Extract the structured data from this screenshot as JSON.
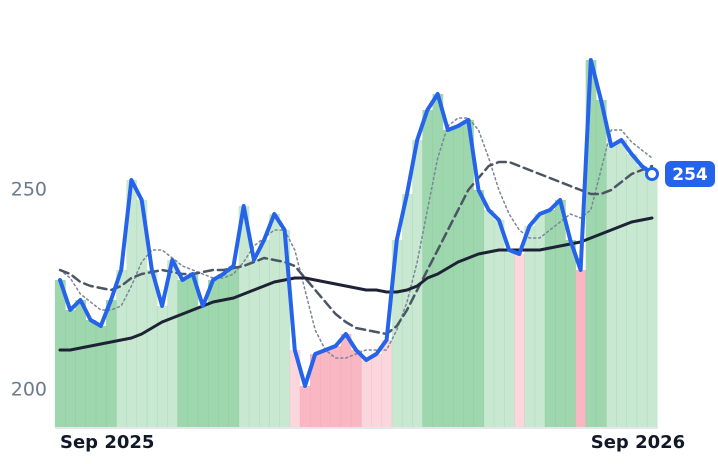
{
  "chart_data": {
    "type": "line",
    "categories": [
      "Sep 2025",
      null,
      null,
      null,
      null,
      null,
      null,
      null,
      null,
      null,
      null,
      null,
      null,
      null,
      null,
      null,
      null,
      null,
      null,
      null,
      null,
      null,
      null,
      null,
      null,
      null,
      null,
      null,
      null,
      null,
      null,
      null,
      null,
      null,
      null,
      null,
      null,
      null,
      null,
      null,
      null,
      null,
      null,
      null,
      null,
      null,
      null,
      null,
      null,
      null,
      null,
      null,
      "Sep 2026",
      null,
      null,
      null,
      null,
      null,
      null
    ],
    "ylim": [
      190.75,
      296.5
    ],
    "yticks": [
      200,
      250
    ],
    "up_color": "#86cc9a",
    "down_color": "#f6a5b3",
    "series": [
      {
        "color": "#2563eb",
        "style": "solid",
        "width": 4,
        "values": [
          227.5,
          220,
          222.5,
          217.5,
          216,
          222.5,
          230,
          252.5,
          247.5,
          230,
          221,
          232.5,
          227.5,
          229,
          221,
          227.5,
          229,
          231,
          246,
          232.5,
          237.5,
          244,
          240,
          210,
          201,
          209,
          210,
          211,
          214,
          210,
          207.5,
          209,
          212.5,
          237.5,
          249,
          262.5,
          270,
          274,
          265,
          266,
          267.5,
          250,
          245,
          242.5,
          235,
          234,
          241,
          244,
          245,
          247.5,
          237.5,
          230,
          282.5,
          272.5,
          261,
          262.5,
          259,
          256,
          254
        ]
      },
      {
        "color": "#7c8599",
        "style": "dotted",
        "width": 1.5,
        "values": [
          230,
          228,
          224,
          222,
          220,
          220,
          221,
          226,
          232,
          235,
          235,
          233,
          231,
          230,
          229,
          228,
          228,
          229,
          232,
          236,
          238,
          240,
          240,
          235,
          225,
          215,
          210,
          208,
          208,
          209,
          210,
          210,
          210,
          215,
          222,
          232,
          245,
          258,
          266,
          268,
          268,
          265,
          258,
          250,
          244,
          240,
          238,
          238,
          240,
          242,
          244,
          243,
          245,
          255,
          265,
          265,
          262,
          260,
          258
        ]
      },
      {
        "color": "#4b5563",
        "style": "dashed",
        "width": 2.5,
        "values": [
          230,
          229,
          227,
          226,
          225.5,
          225,
          226,
          228,
          229,
          229.5,
          230,
          229.5,
          229,
          229,
          229.5,
          230,
          230,
          230.5,
          231,
          232,
          233,
          232.5,
          232,
          231,
          228,
          225,
          222,
          219,
          217,
          215.5,
          215,
          214.5,
          214,
          216,
          220,
          225,
          230,
          235,
          240,
          245,
          250,
          253,
          256,
          257,
          257,
          256,
          255,
          254,
          253,
          252,
          251,
          250,
          249,
          249,
          250,
          252,
          254,
          255,
          256
        ]
      },
      {
        "color": "#1e2235",
        "style": "solid",
        "width": 3,
        "values": [
          210,
          210,
          210.5,
          211,
          211.5,
          212,
          212.5,
          213,
          214,
          215.5,
          217,
          218,
          219,
          220,
          221,
          222,
          222.5,
          223,
          224,
          225,
          226,
          227,
          227.5,
          228,
          228,
          227.5,
          227,
          226.5,
          226,
          225.5,
          225,
          225,
          224.5,
          224.5,
          225,
          226,
          228,
          229,
          230.5,
          232,
          233,
          234,
          234.5,
          235,
          235,
          235,
          235,
          235,
          235.5,
          236,
          236.5,
          237,
          238,
          239,
          240,
          241,
          242,
          242.5,
          243
        ]
      }
    ]
  }
}
